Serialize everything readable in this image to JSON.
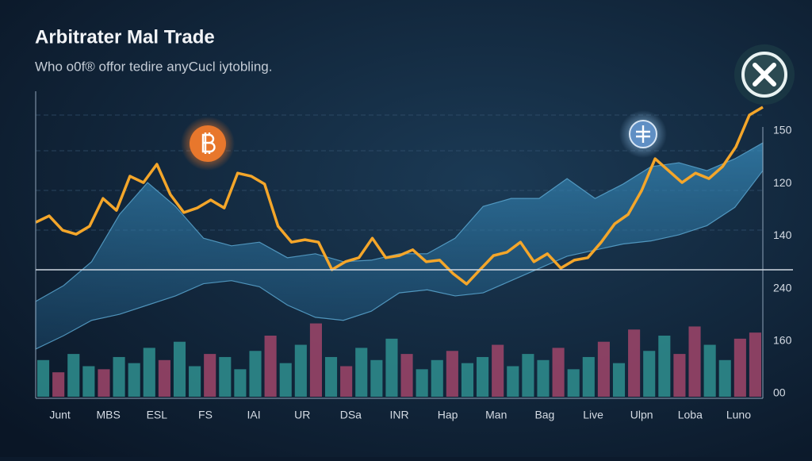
{
  "chart_data": {
    "type": "line",
    "title": "Arbitrater Mal Trade",
    "subtitle": "Who o0f® offor tedire anyCucl iytobling.",
    "categories": [
      "Junt",
      "MBS",
      "ESL",
      "FS",
      "IAI",
      "UR",
      "DSa",
      "INR",
      "Hap",
      "Man",
      "Bag",
      "Live",
      "Ulpn",
      "Loba",
      "Luno"
    ],
    "y_axis_labels": [
      "150",
      "120",
      "140",
      "240",
      "160",
      "00"
    ],
    "ylim": [
      0,
      100
    ],
    "grid": true,
    "line": {
      "color": "#f4a62a",
      "values": [
        57.1,
        59.2,
        54.5,
        53.2,
        55.8,
        64.9,
        61.0,
        72.2,
        70.1,
        76.1,
        66.2,
        60.3,
        61.8,
        64.4,
        61.8,
        73.2,
        72.2,
        69.6,
        55.8,
        50.6,
        51.4,
        50.6,
        41.6,
        44.2,
        45.5,
        51.9,
        45.5,
        46.2,
        48.1,
        44.2,
        44.7,
        40.3,
        36.9,
        41.6,
        46.2,
        47.3,
        50.6,
        44.2,
        46.8,
        42.1,
        44.7,
        45.5,
        50.6,
        56.6,
        59.7,
        67.5,
        77.9,
        74.0,
        70.1,
        73.2,
        71.4,
        75.3,
        81.8,
        92.2,
        94.8
      ]
    },
    "band": {
      "color": "#2e7fae",
      "upper": [
        31.2,
        36.4,
        44.2,
        59.7,
        70.1,
        62.3,
        51.9,
        49.4,
        50.6,
        45.5,
        46.8,
        44.2,
        44.7,
        46.8,
        46.8,
        51.9,
        62.3,
        64.9,
        64.9,
        71.4,
        64.9,
        69.6,
        75.3,
        76.6,
        74.0,
        77.9,
        83.1
      ],
      "lower": [
        15.6,
        20,
        25,
        27,
        30,
        33,
        37,
        38,
        36,
        30,
        26,
        25,
        28,
        34,
        35,
        33,
        34,
        38,
        42,
        46,
        48,
        50,
        51,
        53,
        56,
        62,
        74
      ]
    },
    "volume": {
      "values": [
        12,
        8,
        14,
        10,
        9,
        13,
        11,
        16,
        12,
        18,
        10,
        14,
        13,
        9,
        15,
        20,
        11,
        17,
        24,
        13,
        10,
        16,
        12,
        19,
        14,
        9,
        12,
        15,
        11,
        13,
        17,
        10,
        14,
        12,
        16,
        9,
        13,
        18,
        11,
        22,
        15,
        20,
        14,
        23,
        17,
        12,
        19,
        21
      ],
      "colors": [
        "#2f8f8f",
        "#a0456a",
        "#2f8f8f",
        "#2f8f8f",
        "#a0456a",
        "#2f8f8f",
        "#2f8f8f",
        "#2f8f8f",
        "#a0456a",
        "#2f8f8f",
        "#2f8f8f",
        "#a0456a",
        "#2f8f8f",
        "#2f8f8f",
        "#2f8f8f",
        "#a0456a",
        "#2f8f8f",
        "#2f8f8f",
        "#a0456a",
        "#2f8f8f",
        "#a0456a",
        "#2f8f8f",
        "#2f8f8f",
        "#2f8f8f",
        "#a0456a",
        "#2f8f8f",
        "#2f8f8f",
        "#a0456a",
        "#2f8f8f",
        "#2f8f8f",
        "#a0456a",
        "#2f8f8f",
        "#2f8f8f",
        "#2f8f8f",
        "#a0456a",
        "#2f8f8f",
        "#2f8f8f",
        "#a0456a",
        "#2f8f8f",
        "#a0456a",
        "#2f8f8f",
        "#2f8f8f",
        "#a0456a",
        "#a0456a",
        "#2f8f8f",
        "#2f8f8f",
        "#a0456a",
        "#a0456a"
      ]
    }
  }
}
